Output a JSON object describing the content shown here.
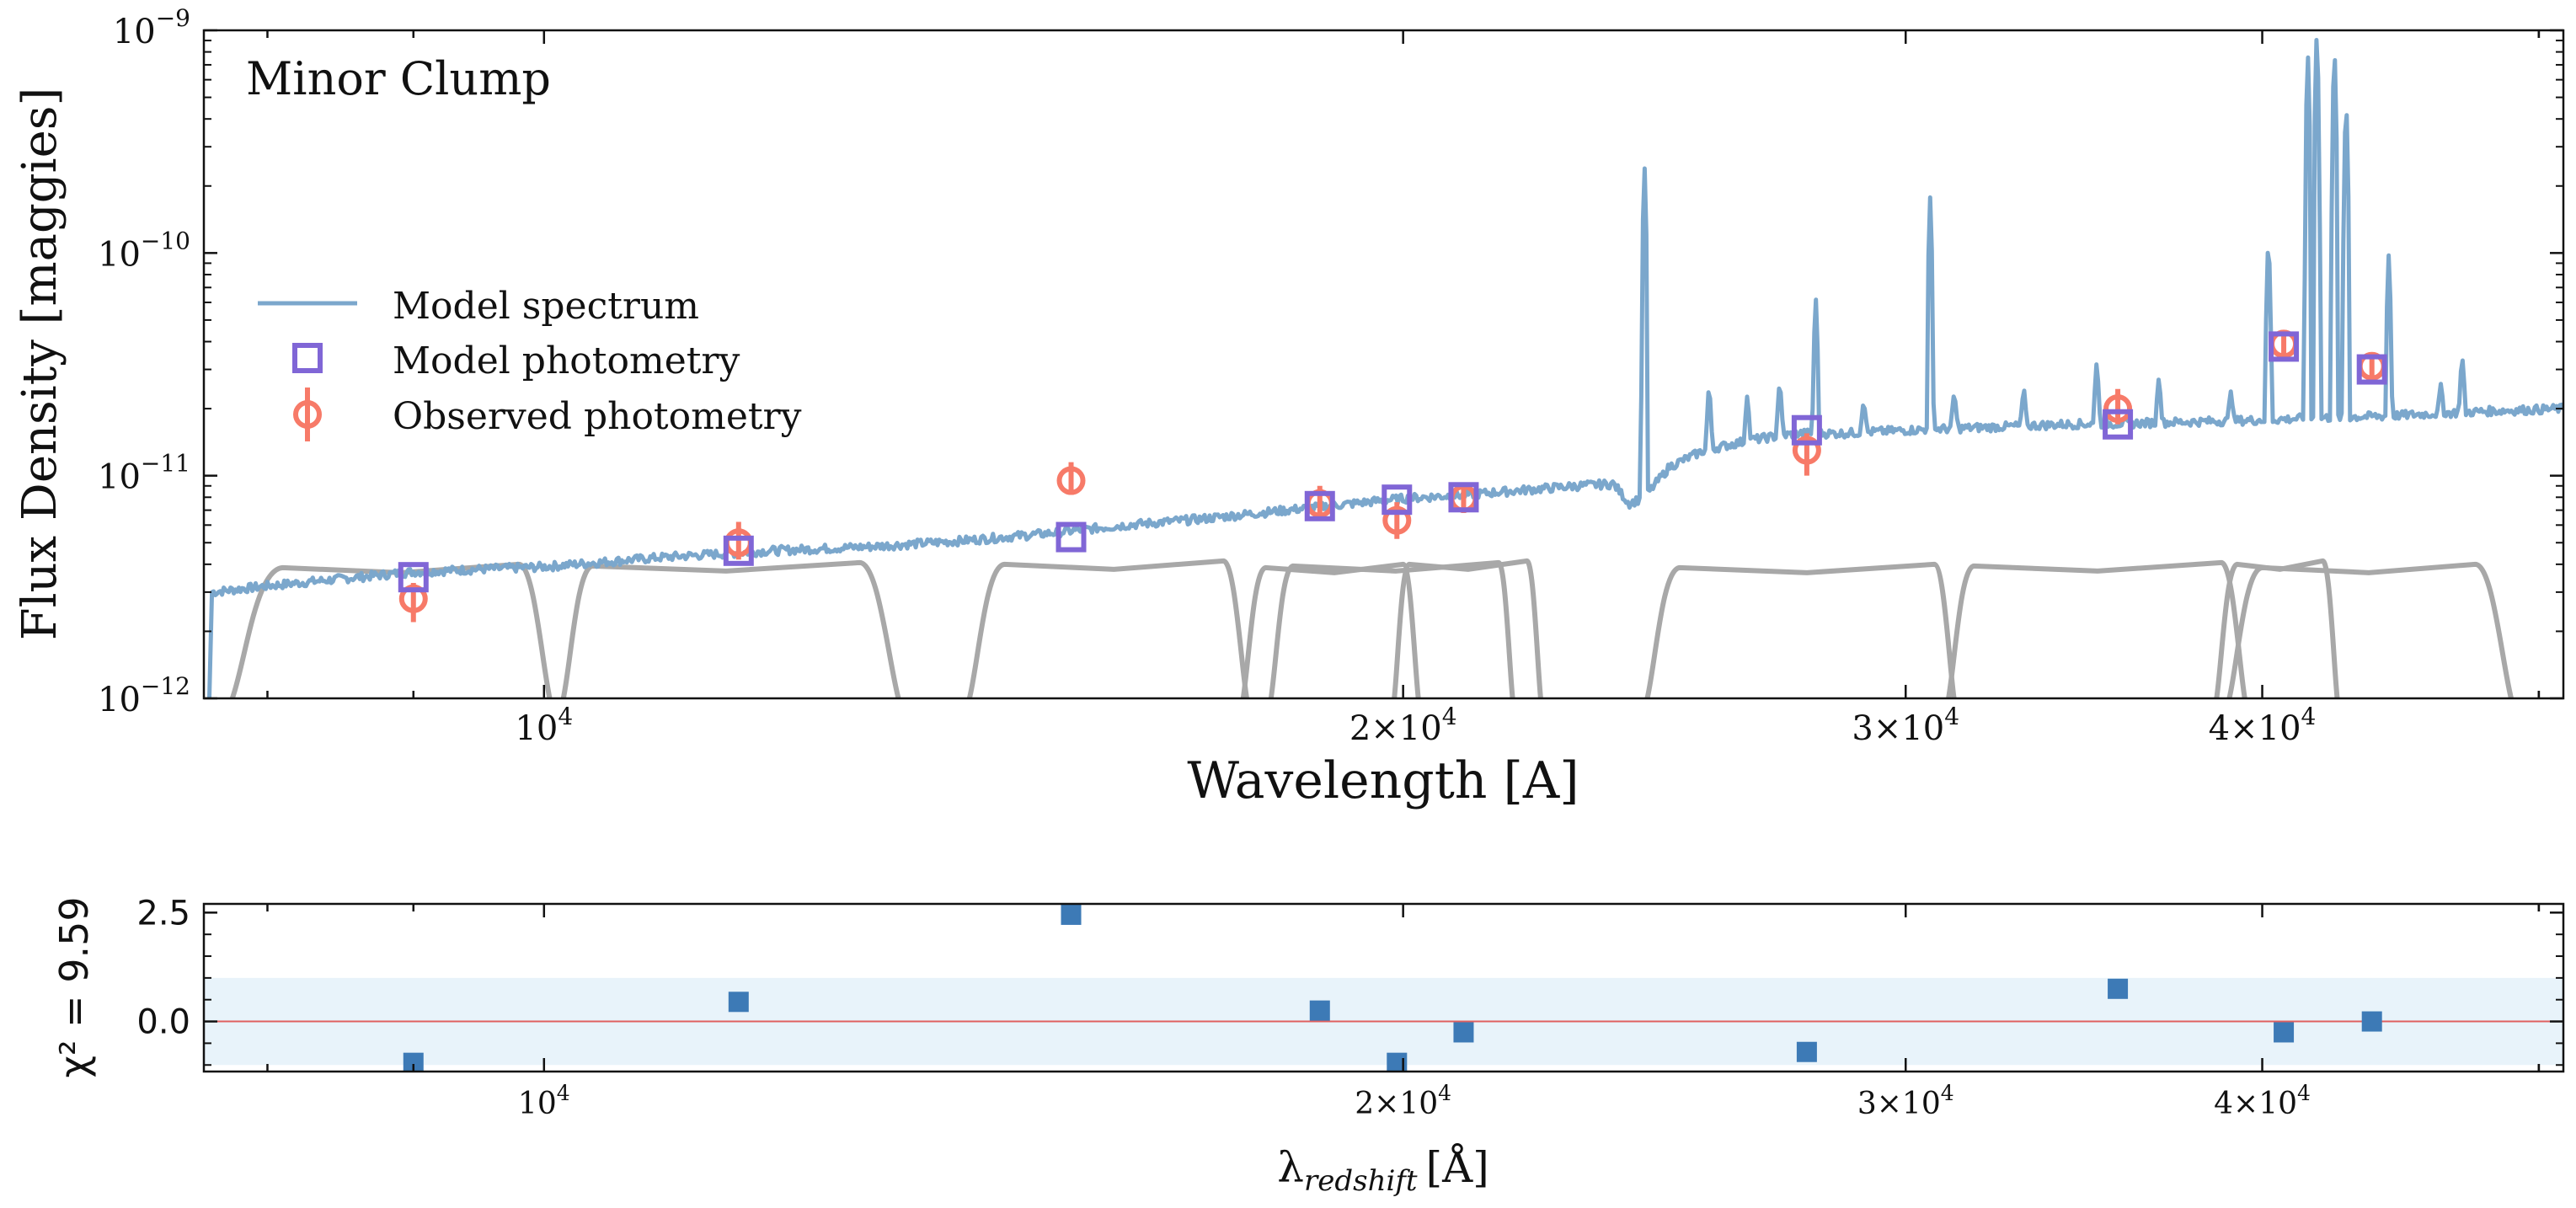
{
  "chart_data": [
    {
      "type": "line",
      "annotation": "Minor Clump",
      "annotation_color": "#4a7fb0",
      "xlabel": "Wavelength [A]",
      "ylabel": "Flux Density [maggies]",
      "xscale": "log",
      "yscale": "log",
      "xlim": [
        7600,
        51000
      ],
      "ylim": [
        1e-12,
        1e-09
      ],
      "x_ticks": [
        {
          "value": 10000,
          "base": "10",
          "exp": "4",
          "label": "10^4"
        },
        {
          "value": 20000,
          "base": "2×10",
          "exp": "4",
          "label": "2×10^4"
        },
        {
          "value": 30000,
          "base": "3×10",
          "exp": "4",
          "label": "3×10^4"
        },
        {
          "value": 40000,
          "base": "4×10",
          "exp": "4",
          "label": "4×10^4"
        }
      ],
      "y_ticks": [
        {
          "value": 1e-12,
          "base": "10",
          "exp": "−12"
        },
        {
          "value": 1e-11,
          "base": "10",
          "exp": "−11"
        },
        {
          "value": 1e-10,
          "base": "10",
          "exp": "−10"
        },
        {
          "value": 1e-09,
          "base": "10",
          "exp": "−9"
        }
      ],
      "legend": {
        "position": "center-left",
        "entries": [
          "Model spectrum",
          "Model photometry",
          "Observed photometry"
        ]
      },
      "colors": {
        "model_spectrum": "#7ba7cc",
        "model_photometry": "#8066d6",
        "observed_photometry": "#f77a68",
        "filters": "#a8a8a8"
      },
      "model_spectrum": {
        "name": "Model spectrum",
        "continuum": [
          [
            7600,
            1e-13
          ],
          [
            7650,
            3e-12
          ],
          [
            8000,
            3.2e-12
          ],
          [
            9000,
            3.7e-12
          ],
          [
            10000,
            3.9e-12
          ],
          [
            11000,
            4.3e-12
          ],
          [
            12000,
            4.6e-12
          ],
          [
            13000,
            4.8e-12
          ],
          [
            14000,
            5.1e-12
          ],
          [
            15000,
            5.5e-12
          ],
          [
            16000,
            6e-12
          ],
          [
            17000,
            6.4e-12
          ],
          [
            18000,
            6.9e-12
          ],
          [
            19000,
            7.4e-12
          ],
          [
            20000,
            7.9e-12
          ],
          [
            21000,
            8.2e-12
          ],
          [
            22000,
            8.6e-12
          ],
          [
            23000,
            9e-12
          ],
          [
            23700,
            9.2e-12
          ],
          [
            24000,
            7.5e-12
          ],
          [
            24300,
            8e-12
          ],
          [
            24800,
            1.1e-11
          ],
          [
            25500,
            1.3e-11
          ],
          [
            26500,
            1.45e-11
          ],
          [
            27500,
            1.55e-11
          ],
          [
            28500,
            1.55e-11
          ],
          [
            30000,
            1.6e-11
          ],
          [
            32000,
            1.65e-11
          ],
          [
            34000,
            1.7e-11
          ],
          [
            36000,
            1.72e-11
          ],
          [
            38000,
            1.75e-11
          ],
          [
            40000,
            1.78e-11
          ],
          [
            42000,
            1.82e-11
          ],
          [
            44000,
            1.85e-11
          ],
          [
            46000,
            1.9e-11
          ],
          [
            48000,
            1.95e-11
          ],
          [
            51000,
            2e-11
          ]
        ],
        "emission_lines": [
          [
            24300,
            2.5e-10
          ],
          [
            25600,
            2.6e-11
          ],
          [
            26400,
            2.3e-11
          ],
          [
            27100,
            2.7e-11
          ],
          [
            27900,
            6.5e-11
          ],
          [
            29000,
            2.2e-11
          ],
          [
            30600,
            1.8e-10
          ],
          [
            31200,
            2.4e-11
          ],
          [
            33000,
            2.5e-11
          ],
          [
            35000,
            3.3e-11
          ],
          [
            36800,
            2.8e-11
          ],
          [
            39000,
            2.4e-11
          ],
          [
            40200,
            1.2e-10
          ],
          [
            41500,
            8e-10
          ],
          [
            41800,
            1e-09
          ],
          [
            42400,
            8.5e-10
          ],
          [
            42800,
            5e-10
          ],
          [
            44300,
            1e-10
          ],
          [
            46200,
            2.6e-11
          ],
          [
            47000,
            3.5e-11
          ]
        ]
      },
      "photometry": {
        "wavelength": [
          9000,
          11700,
          15300,
          18700,
          19900,
          21000,
          27700,
          35600,
          40700,
          43700
        ],
        "model": [
          3.5e-12,
          4.6e-12,
          5.3e-12,
          7.3e-12,
          7.8e-12,
          8e-12,
          1.6e-11,
          1.7e-11,
          3.8e-11,
          3e-11
        ],
        "observed": [
          2.8e-12,
          5e-12,
          9.5e-12,
          7.5e-12,
          6.3e-12,
          7.9e-12,
          1.3e-11,
          2e-11,
          3.9e-11,
          3.1e-11
        ],
        "observed_err_low": [
          2.2e-12,
          4.2e-12,
          8.2e-12,
          6.4e-12,
          5.2e-12,
          6.8e-12,
          1e-11,
          1.7e-11,
          3.5e-11,
          2.75e-11
        ],
        "observed_err_high": [
          3.3e-12,
          6.2e-12,
          1.15e-11,
          9e-12,
          7.6e-12,
          9.3e-12,
          1.55e-11,
          2.45e-11,
          4.3e-11,
          3.5e-11
        ]
      },
      "filter_curves": [
        {
          "start": 7700,
          "peak_start": 8100,
          "peak_end": 9800,
          "end": 10100
        },
        {
          "start": 10100,
          "peak_start": 10400,
          "peak_end": 12900,
          "end": 13400
        },
        {
          "start": 14000,
          "peak_start": 14500,
          "peak_end": 17300,
          "end": 17700
        },
        {
          "start": 17500,
          "peak_start": 17900,
          "peak_end": 20000,
          "end": 20300
        },
        {
          "start": 17900,
          "peak_start": 18300,
          "peak_end": 21600,
          "end": 21900
        },
        {
          "start": 19800,
          "peak_start": 20100,
          "peak_end": 22100,
          "end": 22400
        },
        {
          "start": 24200,
          "peak_start": 25000,
          "peak_end": 30700,
          "end": 31300
        },
        {
          "start": 30900,
          "peak_start": 31700,
          "peak_end": 38700,
          "end": 39600
        },
        {
          "start": 38400,
          "peak_start": 39200,
          "peak_end": 42000,
          "end": 42600
        },
        {
          "start": 38700,
          "peak_start": 40000,
          "peak_end": 47500,
          "end": 49200
        }
      ]
    },
    {
      "type": "scatter",
      "xlabel": "λ",
      "xlabel_sub": "redshift",
      "xlabel_unit": "[Å]",
      "ylabel": "χ² = 9.59",
      "xscale": "log",
      "xlim": [
        7600,
        51000
      ],
      "ylim": [
        -1.15,
        2.7
      ],
      "y_ticks": [
        {
          "value": 2.5,
          "label": "2.5"
        },
        {
          "value": 0.0,
          "label": "0.0"
        }
      ],
      "band": [
        -1,
        1
      ],
      "band_color": "#e8f3fa",
      "zero_line_color": "#e06060",
      "marker_color": "#3d7ab6",
      "series": [
        {
          "x": [
            9000,
            11700,
            15300,
            18700,
            19900,
            21000,
            27700,
            35600,
            40700,
            43700
          ],
          "y": [
            -0.95,
            0.45,
            2.45,
            0.25,
            -0.95,
            -0.25,
            -0.7,
            0.75,
            -0.25,
            0.0
          ]
        }
      ]
    }
  ]
}
